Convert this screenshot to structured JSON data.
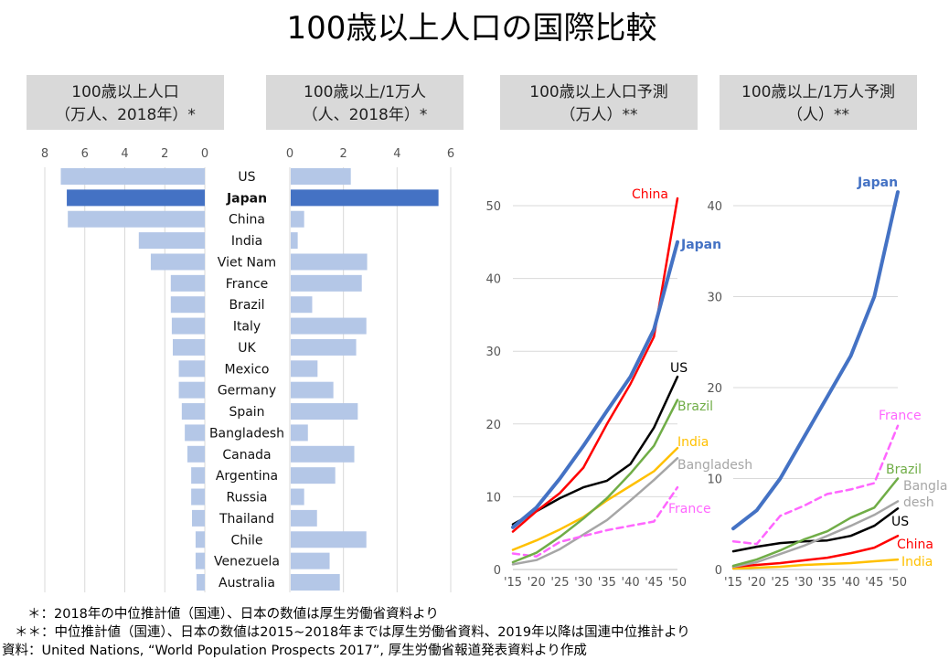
{
  "title": "100歳以上人口の国際比較",
  "headers": [
    [
      "100歳以上人口",
      "（万人、2018年）*"
    ],
    [
      "100歳以上/1万人",
      "（人、2018年）*"
    ],
    [
      "100歳以上人口予測",
      "（万人）**"
    ],
    [
      "100歳以上/1万人予測",
      "（人）**"
    ]
  ],
  "footnotes": [
    "＊：2018年の中位推計値（国連）、日本の数値は厚生労働省資料より",
    "＊＊：中位推計値（国連）、日本の数値は2015~2018年までは厚生労働省資料、2019年以降は国連中位推計より",
    "資料：United Nations, “World Population Prospects 2017”, 厚生労働省報道発表資料より作成"
  ],
  "colors": {
    "bar": "#b4c7e7",
    "bar_highlight": "#4472c4",
    "grid": "#d9d9d9",
    "header_bg": "#d9d9d9"
  },
  "chart_data": [
    {
      "type": "bar",
      "title": "100歳以上人口（万人、2018年）*",
      "orientation": "horizontal-left",
      "xlim": [
        0,
        8
      ],
      "ticks": [
        "8",
        "6",
        "4",
        "2",
        "0"
      ],
      "tick_values": [
        8,
        6,
        4,
        2,
        0
      ],
      "categories": [
        "US",
        "Japan",
        "China",
        "India",
        "Viet Nam",
        "France",
        "Brazil",
        "Italy",
        "UK",
        "Mexico",
        "Germany",
        "Spain",
        "Bangladesh",
        "Canada",
        "Argentina",
        "Russia",
        "Thailand",
        "Chile",
        "Venezuela",
        "Australia"
      ],
      "highlight": "Japan",
      "values": [
        7.2,
        6.9,
        6.85,
        3.3,
        2.7,
        1.7,
        1.7,
        1.65,
        1.6,
        1.3,
        1.3,
        1.15,
        1.0,
        0.87,
        0.68,
        0.68,
        0.64,
        0.46,
        0.46,
        0.41
      ]
    },
    {
      "type": "bar",
      "title": "100歳以上/1万人（人、2018年）*",
      "orientation": "horizontal-right",
      "xlim": [
        0,
        6
      ],
      "ticks": [
        "0",
        "2",
        "4",
        "6"
      ],
      "tick_values": [
        0,
        2,
        4,
        6
      ],
      "categories": [
        "US",
        "Japan",
        "China",
        "India",
        "Viet Nam",
        "France",
        "Brazil",
        "Italy",
        "UK",
        "Mexico",
        "Germany",
        "Spain",
        "Bangladesh",
        "Canada",
        "Argentina",
        "Russia",
        "Thailand",
        "Chile",
        "Venezuela",
        "Australia"
      ],
      "highlight": "Japan",
      "values": [
        2.24,
        5.51,
        0.5,
        0.26,
        2.85,
        2.65,
        0.8,
        2.82,
        2.44,
        1.0,
        1.59,
        2.5,
        0.64,
        2.37,
        1.66,
        0.5,
        0.98,
        2.82,
        1.45,
        1.83
      ]
    },
    {
      "type": "line",
      "title": "100歳以上人口予測（万人）**",
      "x": [
        2015,
        2020,
        2025,
        2030,
        2035,
        2040,
        2045,
        2050
      ],
      "xticks": [
        "'15",
        "'20",
        "'25",
        "'30",
        "'35",
        "'40",
        "'45",
        "'50"
      ],
      "ylim": [
        0,
        50
      ],
      "yticks": [
        "0",
        "10",
        "20",
        "30",
        "40",
        "50"
      ],
      "ytick_values": [
        0,
        10,
        20,
        30,
        40,
        50
      ],
      "series": [
        {
          "name": "India",
          "label": "India",
          "color": "#ffc000",
          "values": [
            2.7,
            4,
            5.5,
            7.2,
            9.5,
            11.5,
            13.5,
            16.7
          ]
        },
        {
          "name": "Bangladesh",
          "label": "Bangladesh",
          "color": "#a6a6a6",
          "values": [
            0.7,
            1.3,
            2.8,
            4.8,
            6.8,
            9.5,
            12.3,
            15.3
          ]
        },
        {
          "name": "France",
          "label": "France",
          "color": "#ff66ff",
          "dashed": true,
          "values": [
            2.2,
            1.8,
            3.8,
            4.6,
            5.4,
            6,
            6.6,
            11.3
          ]
        },
        {
          "name": "Brazil",
          "label": "Brazil",
          "color": "#70ad47",
          "values": [
            1,
            2.3,
            4.5,
            7,
            9.8,
            13.2,
            17,
            23.3
          ]
        },
        {
          "name": "US",
          "label": "US",
          "color": "#000000",
          "values": [
            6.2,
            8,
            9.8,
            11.3,
            12.2,
            14.5,
            19.5,
            26.5
          ]
        },
        {
          "name": "China",
          "label": "China",
          "color": "#ff0000",
          "values": [
            5.2,
            8,
            10.5,
            14,
            20,
            25.5,
            32,
            51
          ]
        },
        {
          "name": "Japan",
          "label": "Japan",
          "color": "#4472c4",
          "bold": true,
          "values": [
            5.8,
            8.5,
            12.5,
            17,
            21.8,
            26.5,
            33,
            45
          ]
        }
      ]
    },
    {
      "type": "line",
      "title": "100歳以上/1万人予測（人）**",
      "x": [
        2015,
        2020,
        2025,
        2030,
        2035,
        2040,
        2045,
        2050
      ],
      "xticks": [
        "'15",
        "'20",
        "'25",
        "'30",
        "'35",
        "'40",
        "'45",
        "'50"
      ],
      "ylim": [
        0,
        40
      ],
      "yticks": [
        "0",
        "10",
        "20",
        "30",
        "40"
      ],
      "ytick_values": [
        0,
        10,
        20,
        30,
        40
      ],
      "series": [
        {
          "name": "India",
          "label": "India",
          "color": "#ffc000",
          "values": [
            0.1,
            0.2,
            0.3,
            0.5,
            0.6,
            0.7,
            0.9,
            1.1
          ]
        },
        {
          "name": "China",
          "label": "China",
          "color": "#ff0000",
          "values": [
            0.3,
            0.5,
            0.7,
            1,
            1.3,
            1.8,
            2.4,
            3.7
          ]
        },
        {
          "name": "US",
          "label": "US",
          "color": "#000000",
          "values": [
            2,
            2.5,
            2.9,
            3.1,
            3.2,
            3.7,
            4.8,
            6.7
          ]
        },
        {
          "name": "Bangladesh",
          "label": "Bangla desh",
          "color": "#a6a6a6",
          "values": [
            0.3,
            0.8,
            1.7,
            2.6,
            3.7,
            4.8,
            6,
            7.5
          ]
        },
        {
          "name": "Brazil",
          "label": "Brazil",
          "color": "#70ad47",
          "values": [
            0.4,
            1.1,
            2.1,
            3.3,
            4.2,
            5.7,
            6.8,
            10
          ]
        },
        {
          "name": "France",
          "label": "France",
          "color": "#ff66ff",
          "dashed": true,
          "values": [
            3.1,
            2.8,
            5.9,
            7,
            8.3,
            8.8,
            9.5,
            15.8
          ]
        },
        {
          "name": "Japan",
          "label": "Japan",
          "color": "#4472c4",
          "bold": true,
          "values": [
            4.5,
            6.5,
            10,
            14.5,
            19,
            23.5,
            30,
            41.5
          ]
        }
      ]
    }
  ]
}
